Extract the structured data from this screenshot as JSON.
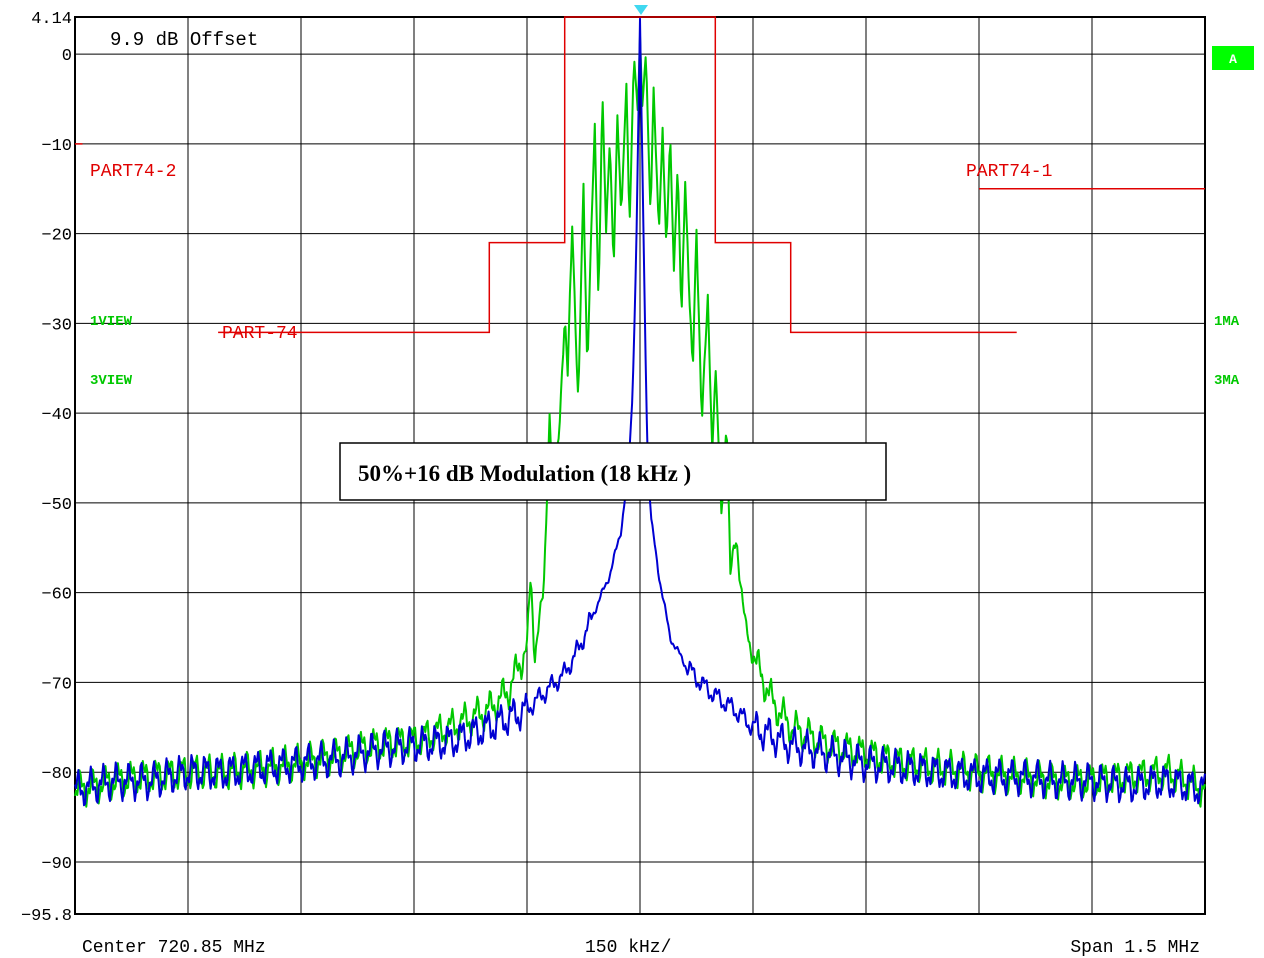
{
  "header": {
    "offset_label": "9.9 dB Offset",
    "trace_badge": "A"
  },
  "footer": {
    "center_label": "Center 720.85 MHz",
    "div_label": "150 kHz/",
    "span_label": "Span 1.5 MHz"
  },
  "trace_labels": {
    "left_1": "1VIEW",
    "left_3": "3VIEW",
    "right_1": "1MA",
    "right_3": "3MA"
  },
  "limit_labels": {
    "part74": "PART-74",
    "part74_2": "PART74-2",
    "part74_1": "PART74-1"
  },
  "annotation": "50%+16 dB Modulation (18 kHz )",
  "colors": {
    "grid": "#000000",
    "trace1": "#00c800",
    "trace3": "#0000d2",
    "limit": "#e00000",
    "marker": "#40d8f0",
    "badge": "#00ff00"
  },
  "chart_data": {
    "type": "line",
    "title": "",
    "xlabel": "",
    "ylabel": "",
    "x_unit": "kHz offset from center",
    "center_mhz": 720.85,
    "span_mhz": 1.5,
    "xlim": [
      -750,
      750
    ],
    "ylim": [
      -95.8,
      4.14
    ],
    "y_ticks": [
      {
        "label": "4.14",
        "value": 4.14
      },
      {
        "label": "0",
        "value": 0
      },
      {
        "label": "-10",
        "value": -10
      },
      {
        "label": "-20",
        "value": -20
      },
      {
        "label": "-30",
        "value": -30
      },
      {
        "label": "-40",
        "value": -40
      },
      {
        "label": "-50",
        "value": -50
      },
      {
        "label": "-60",
        "value": -60
      },
      {
        "label": "-70",
        "value": -70
      },
      {
        "label": "-80",
        "value": -80
      },
      {
        "label": "-90",
        "value": -90
      },
      {
        "label": "-95.8",
        "value": -95.8
      }
    ],
    "x_divisions": 10,
    "grid": true,
    "marker": {
      "x": 0,
      "y": 3.3
    },
    "series": [
      {
        "name": "1VIEW",
        "color": "#00c800",
        "x": [
          -750,
          -700,
          -650,
          -600,
          -550,
          -500,
          -450,
          -400,
          -350,
          -300,
          -250,
          -200,
          -175,
          -150,
          -145,
          -140,
          -128,
          -120,
          -115,
          -108,
          -100,
          -96,
          -90,
          -82,
          -75,
          -70,
          -60,
          -55,
          -50,
          -45,
          -40,
          -35,
          -30,
          -25,
          -18,
          -14,
          -8,
          -3,
          0,
          3,
          8,
          14,
          18,
          25,
          30,
          35,
          40,
          45,
          50,
          55,
          60,
          70,
          75,
          82,
          90,
          96,
          100,
          108,
          115,
          120,
          128,
          140,
          150,
          175,
          200,
          250,
          300,
          350,
          400,
          450,
          500,
          550,
          600,
          650,
          700,
          750
        ],
        "y": [
          -82,
          -81,
          -80.5,
          -80,
          -80,
          -79.5,
          -79,
          -78,
          -77,
          -76.5,
          -75,
          -73,
          -71,
          -66,
          -58,
          -67,
          -60,
          -40,
          -50,
          -42,
          -30,
          -36,
          -18,
          -40,
          -14,
          -35,
          -8,
          -28,
          -4,
          -20,
          -9,
          -24,
          -7,
          -18,
          -3,
          -20,
          0,
          -6,
          2,
          -6,
          0,
          -18,
          -4,
          -20,
          -8,
          -22,
          -9,
          -24,
          -12,
          -30,
          -14,
          -36,
          -20,
          -40,
          -28,
          -44,
          -34,
          -52,
          -40,
          -58,
          -54,
          -64,
          -67,
          -72,
          -75,
          -77,
          -78,
          -79,
          -79.5,
          -80,
          -80.5,
          -81,
          -81,
          -80.5,
          -80,
          -82
        ]
      },
      {
        "name": "3VIEW",
        "color": "#0000d2",
        "x": [
          -750,
          -700,
          -650,
          -600,
          -550,
          -500,
          -450,
          -400,
          -350,
          -300,
          -250,
          -200,
          -175,
          -150,
          -125,
          -100,
          -80,
          -60,
          -40,
          -25,
          -15,
          -10,
          -5,
          0,
          5,
          10,
          15,
          25,
          40,
          60,
          80,
          100,
          125,
          150,
          175,
          200,
          250,
          300,
          350,
          400,
          450,
          500,
          550,
          600,
          650,
          700,
          750
        ],
        "y": [
          -82,
          -81,
          -81,
          -80,
          -80,
          -79.5,
          -79,
          -78.5,
          -77.5,
          -77,
          -76.5,
          -75,
          -74,
          -73,
          -71,
          -69,
          -66,
          -62,
          -58,
          -53,
          -46,
          -38,
          -22,
          3.5,
          -22,
          -45,
          -52,
          -58,
          -65,
          -68,
          -70,
          -71.5,
          -73,
          -75,
          -76,
          -77,
          -78,
          -79,
          -79.5,
          -80,
          -80.5,
          -80.5,
          -81,
          -81,
          -81.5,
          -81,
          -82
        ]
      }
    ],
    "limit_lines": [
      {
        "name": "PART-74",
        "x": [
          -560,
          -200,
          -200,
          -100,
          -100,
          100,
          100,
          200,
          200,
          500
        ],
        "y": [
          -31,
          -31,
          -21,
          -21,
          100,
          100,
          -21,
          -21,
          -31,
          -31
        ]
      },
      {
        "name": "PART74-2",
        "x": [
          -750,
          -740
        ],
        "y": [
          -10,
          -10
        ]
      },
      {
        "name": "PART74-1",
        "x": [
          450,
          750
        ],
        "y": [
          -15,
          -15
        ]
      }
    ]
  }
}
